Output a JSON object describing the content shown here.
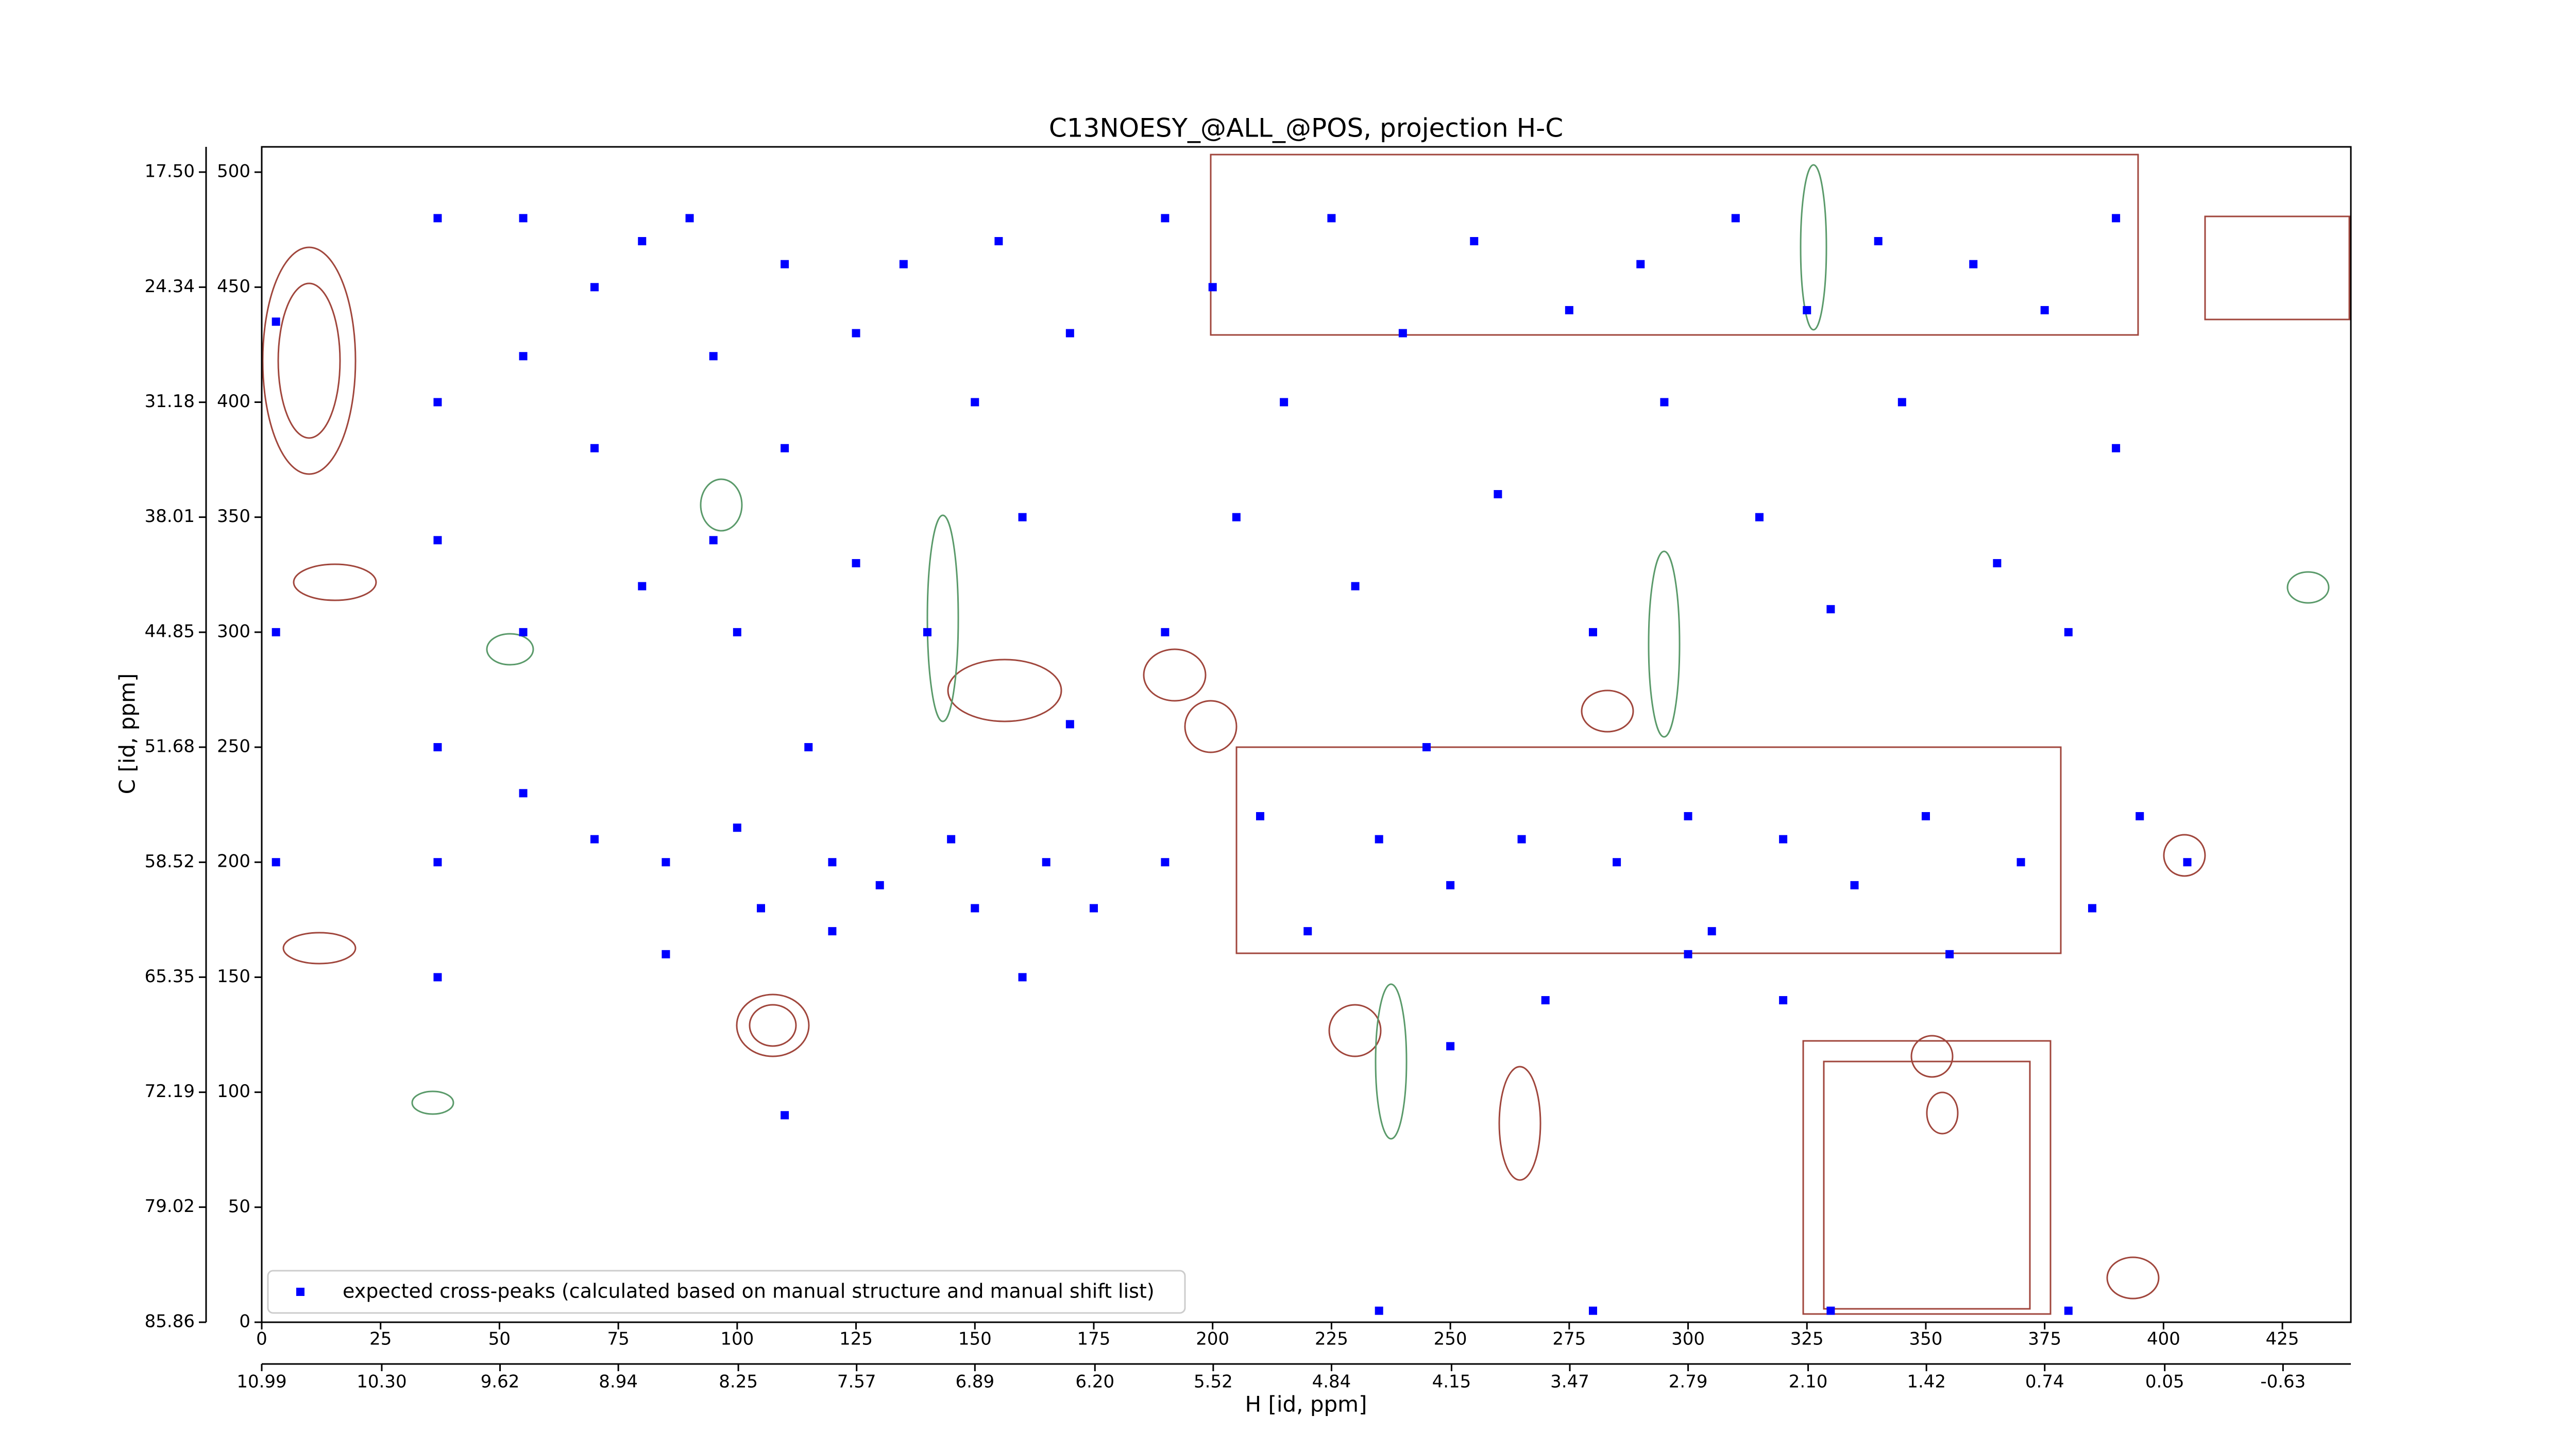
{
  "chart_data": {
    "type": "scatter",
    "title": "C13NOESY_@ALL_@POS, projection H-C",
    "xlabel": "H [id, ppm]",
    "ylabel": "C [id, ppm]",
    "xlim": [
      0,
      439.4
    ],
    "xticks": [
      0,
      25,
      50,
      75,
      100,
      125,
      150,
      175,
      200,
      225,
      250,
      275,
      300,
      325,
      350,
      375,
      400,
      425
    ],
    "x2lim": [
      10.99,
      -1.02
    ],
    "x2ticks": [
      10.99,
      {
        "value": 10.3,
        "label": "10.30"
      },
      9.62,
      8.94,
      8.25,
      7.57,
      6.89,
      {
        "value": 6.2,
        "label": "6.20"
      },
      5.52,
      4.84,
      4.15,
      3.47,
      2.79,
      {
        "value": 2.1,
        "label": "2.10"
      },
      1.42,
      0.74,
      0.05,
      -0.63
    ],
    "ylim": [
      0,
      511
    ],
    "yticks": [
      0,
      50,
      100,
      150,
      200,
      250,
      300,
      350,
      400,
      450,
      500
    ],
    "y2lim": [
      85.86,
      16.0
    ],
    "y2ticks": [
      85.86,
      79.02,
      72.19,
      65.35,
      58.52,
      51.68,
      44.85,
      38.01,
      31.18,
      24.34,
      {
        "value": 17.5,
        "label": "17.50"
      }
    ],
    "legend": "lower left",
    "series": [
      {
        "name": "expected cross-peaks (calculated based on manual structure and manual shift list)",
        "color": "#0000ff",
        "x": [
          3,
          3,
          3,
          37,
          37,
          37,
          37,
          37,
          37,
          55,
          55,
          55,
          55,
          70,
          70,
          70,
          80,
          80,
          85,
          85,
          90,
          95,
          95,
          100,
          100,
          105,
          110,
          110,
          115,
          120,
          120,
          125,
          125,
          130,
          135,
          140,
          145,
          150,
          150,
          155,
          160,
          165,
          170,
          170,
          175,
          190,
          190,
          190,
          200,
          205,
          210,
          215,
          220,
          225,
          230,
          235,
          240,
          245,
          250,
          255,
          260,
          265,
          270,
          275,
          280,
          285,
          290,
          295,
          300,
          305,
          310,
          315,
          320,
          325,
          330,
          335,
          340,
          345,
          350,
          355,
          360,
          365,
          370,
          375,
          380,
          385,
          390,
          390,
          395,
          235,
          280,
          330,
          380,
          405,
          160,
          250,
          300,
          320,
          110
        ],
        "y": [
          435,
          200,
          300,
          480,
          400,
          340,
          250,
          200,
          150,
          480,
          420,
          300,
          230,
          450,
          380,
          210,
          470,
          320,
          200,
          160,
          480,
          420,
          340,
          300,
          215,
          180,
          460,
          380,
          250,
          200,
          170,
          430,
          330,
          190,
          460,
          300,
          210,
          400,
          180,
          470,
          350,
          200,
          430,
          260,
          180,
          480,
          300,
          200,
          450,
          350,
          220,
          400,
          170,
          480,
          320,
          210,
          430,
          250,
          190,
          470,
          360,
          210,
          140,
          440,
          300,
          200,
          460,
          400,
          220,
          170,
          480,
          350,
          210,
          440,
          310,
          190,
          470,
          400,
          220,
          160,
          460,
          330,
          200,
          440,
          300,
          180,
          480,
          380,
          220,
          5,
          5,
          5,
          5,
          200,
          150,
          120,
          160,
          140,
          90
        ]
      }
    ]
  }
}
